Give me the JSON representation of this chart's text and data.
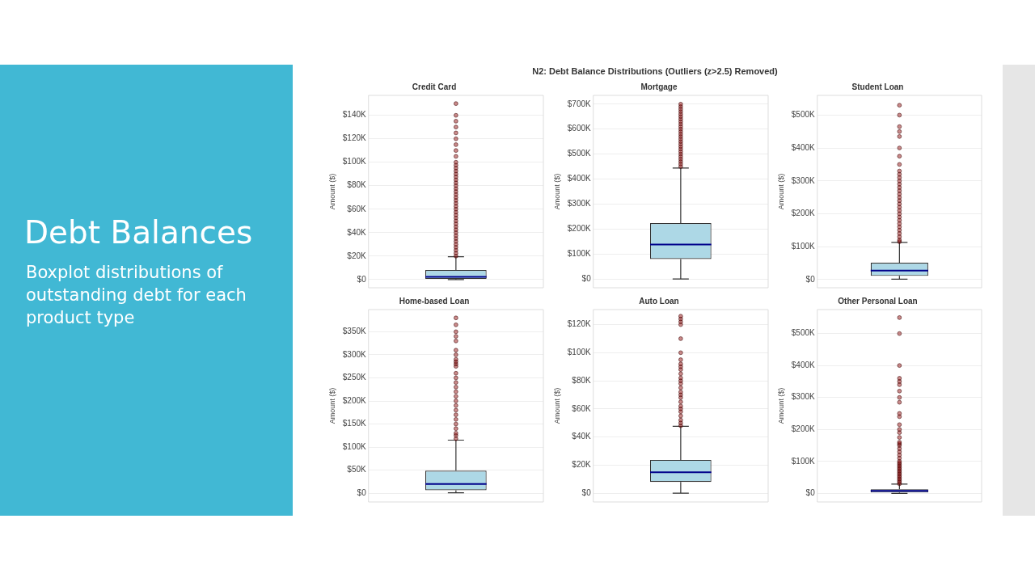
{
  "chart_data": [
    {
      "type": "other",
      "title": "Debt Balances",
      "subtitle": "Boxplot distributions of outstanding debt for each product type"
    },
    {
      "type": "other",
      "title": "N2: Debt Balance Distributions (Outliers (z>2.5) Removed)"
    },
    {
      "type": "box",
      "title": "Credit Card",
      "ylabel": "Amount ($)",
      "categories": [
        null
      ],
      "ylim": [
        -7000,
        157000
      ],
      "yticks": [
        {
          "value": 0,
          "label": "$0"
        },
        {
          "value": 20000,
          "label": "$20K"
        },
        {
          "value": 40000,
          "label": "$40K"
        },
        {
          "value": 60000,
          "label": "$60K"
        },
        {
          "value": 80000,
          "label": "$80K"
        },
        {
          "value": 100000,
          "label": "$100K"
        },
        {
          "value": 120000,
          "label": "$120K"
        },
        {
          "value": 140000,
          "label": "$140K"
        }
      ],
      "grid": "y",
      "tick_labels": "y",
      "boxes": [
        {
          "low": 0,
          "q1": 500,
          "median": 2300,
          "q3": 8100,
          "high": 19400,
          "outliers": [
            20000,
            22500,
            25000,
            27500,
            30000,
            32500,
            35000,
            37500,
            40000,
            42500,
            45000,
            47500,
            50000,
            52500,
            55000,
            57500,
            60000,
            62500,
            65000,
            67500,
            70000,
            72500,
            75000,
            77500,
            80000,
            82500,
            85000,
            87500,
            90000,
            92500,
            95000,
            97500,
            100000,
            105000,
            110000,
            115000,
            120000,
            125000,
            130000,
            135000,
            140000,
            150000
          ]
        }
      ]
    },
    {
      "type": "box",
      "title": "Mortgage",
      "ylabel": "Amount ($)",
      "categories": [
        null
      ],
      "ylim": [
        -35000,
        735000
      ],
      "yticks": [
        {
          "value": 0,
          "label": "$0"
        },
        {
          "value": 100000,
          "label": "$100K"
        },
        {
          "value": 200000,
          "label": "$200K"
        },
        {
          "value": 300000,
          "label": "$300K"
        },
        {
          "value": 400000,
          "label": "$400K"
        },
        {
          "value": 500000,
          "label": "$500K"
        },
        {
          "value": 600000,
          "label": "$600K"
        },
        {
          "value": 700000,
          "label": "$700K"
        }
      ],
      "grid": "y",
      "tick_labels": "y",
      "boxes": [
        {
          "low": 0,
          "q1": 80000,
          "median": 138000,
          "q3": 224000,
          "high": 444000,
          "outliers": [
            450000,
            460000,
            470000,
            480000,
            490000,
            500000,
            510000,
            520000,
            530000,
            540000,
            550000,
            560000,
            570000,
            580000,
            590000,
            600000,
            610000,
            620000,
            630000,
            640000,
            650000,
            660000,
            670000,
            680000,
            690000,
            700000
          ]
        }
      ]
    },
    {
      "type": "box",
      "title": "Student Loan",
      "ylabel": "Amount ($)",
      "categories": [
        null
      ],
      "ylim": [
        -25000,
        560000
      ],
      "yticks": [
        {
          "value": 0,
          "label": "$0"
        },
        {
          "value": 100000,
          "label": "$100K"
        },
        {
          "value": 200000,
          "label": "$200K"
        },
        {
          "value": 300000,
          "label": "$300K"
        },
        {
          "value": 400000,
          "label": "$400K"
        },
        {
          "value": 500000,
          "label": "$500K"
        }
      ],
      "grid": "y",
      "tick_labels": "y",
      "boxes": [
        {
          "low": 1000,
          "q1": 11000,
          "median": 27000,
          "q3": 51000,
          "high": 113000,
          "outliers": [
            115000,
            120000,
            130000,
            140000,
            150000,
            160000,
            170000,
            180000,
            190000,
            200000,
            210000,
            220000,
            230000,
            240000,
            250000,
            260000,
            270000,
            280000,
            290000,
            300000,
            310000,
            320000,
            330000,
            350000,
            375000,
            400000,
            435000,
            450000,
            465000,
            500000,
            530000
          ]
        }
      ]
    },
    {
      "type": "box",
      "title": "Home-based Loan",
      "ylabel": "Amount ($)",
      "categories": [
        null
      ],
      "ylim": [
        -19000,
        398000
      ],
      "yticks": [
        {
          "value": 0,
          "label": "$0"
        },
        {
          "value": 50000,
          "label": "$50K"
        },
        {
          "value": 100000,
          "label": "$100K"
        },
        {
          "value": 150000,
          "label": "$150K"
        },
        {
          "value": 200000,
          "label": "$200K"
        },
        {
          "value": 250000,
          "label": "$250K"
        },
        {
          "value": 300000,
          "label": "$300K"
        },
        {
          "value": 350000,
          "label": "$350K"
        }
      ],
      "grid": "y",
      "tick_labels": "y",
      "boxes": [
        {
          "low": 1000,
          "q1": 6400,
          "median": 20000,
          "q3": 49000,
          "high": 115000,
          "outliers": [
            118000,
            125000,
            130000,
            140000,
            150000,
            160000,
            170000,
            180000,
            190000,
            200000,
            210000,
            220000,
            230000,
            240000,
            250000,
            260000,
            275000,
            280000,
            285000,
            290000,
            300000,
            310000,
            330000,
            340000,
            350000,
            365000,
            380000
          ]
        }
      ]
    },
    {
      "type": "box",
      "title": "Auto Loan",
      "ylabel": "Amount ($)",
      "categories": [
        null
      ],
      "ylim": [
        -6300,
        130700
      ],
      "yticks": [
        {
          "value": 0,
          "label": "$0"
        },
        {
          "value": 20000,
          "label": "$20K"
        },
        {
          "value": 40000,
          "label": "$40K"
        },
        {
          "value": 60000,
          "label": "$60K"
        },
        {
          "value": 80000,
          "label": "$80K"
        },
        {
          "value": 100000,
          "label": "$100K"
        },
        {
          "value": 120000,
          "label": "$120K"
        }
      ],
      "grid": "y",
      "tick_labels": "y",
      "boxes": [
        {
          "low": 0,
          "q1": 8000,
          "median": 14900,
          "q3": 23700,
          "high": 47600,
          "outliers": [
            48000,
            50000,
            52000,
            55000,
            58000,
            60000,
            62000,
            65000,
            68000,
            70000,
            72000,
            75000,
            78000,
            80000,
            82000,
            85000,
            88000,
            90000,
            92000,
            95000,
            100000,
            110000,
            120000,
            122000,
            124000,
            126000
          ]
        }
      ]
    },
    {
      "type": "box",
      "title": "Other Personal Loan",
      "ylabel": "Amount ($)",
      "categories": [
        null
      ],
      "ylim": [
        -27000,
        575000
      ],
      "yticks": [
        {
          "value": 0,
          "label": "$0"
        },
        {
          "value": 100000,
          "label": "$100K"
        },
        {
          "value": 200000,
          "label": "$200K"
        },
        {
          "value": 300000,
          "label": "$300K"
        },
        {
          "value": 400000,
          "label": "$400K"
        },
        {
          "value": 500000,
          "label": "$500K"
        }
      ],
      "grid": "y",
      "tick_labels": "y",
      "boxes": [
        {
          "low": 0,
          "q1": 2500,
          "median": 7500,
          "q3": 13000,
          "high": 29000,
          "outliers": [
            30000,
            35000,
            40000,
            45000,
            50000,
            55000,
            60000,
            65000,
            70000,
            75000,
            80000,
            85000,
            90000,
            95000,
            100000,
            110000,
            120000,
            130000,
            140000,
            150000,
            155000,
            160000,
            175000,
            190000,
            200000,
            215000,
            240000,
            250000,
            285000,
            300000,
            320000,
            340000,
            350000,
            360000,
            400000,
            500000,
            550000
          ]
        }
      ]
    }
  ]
}
